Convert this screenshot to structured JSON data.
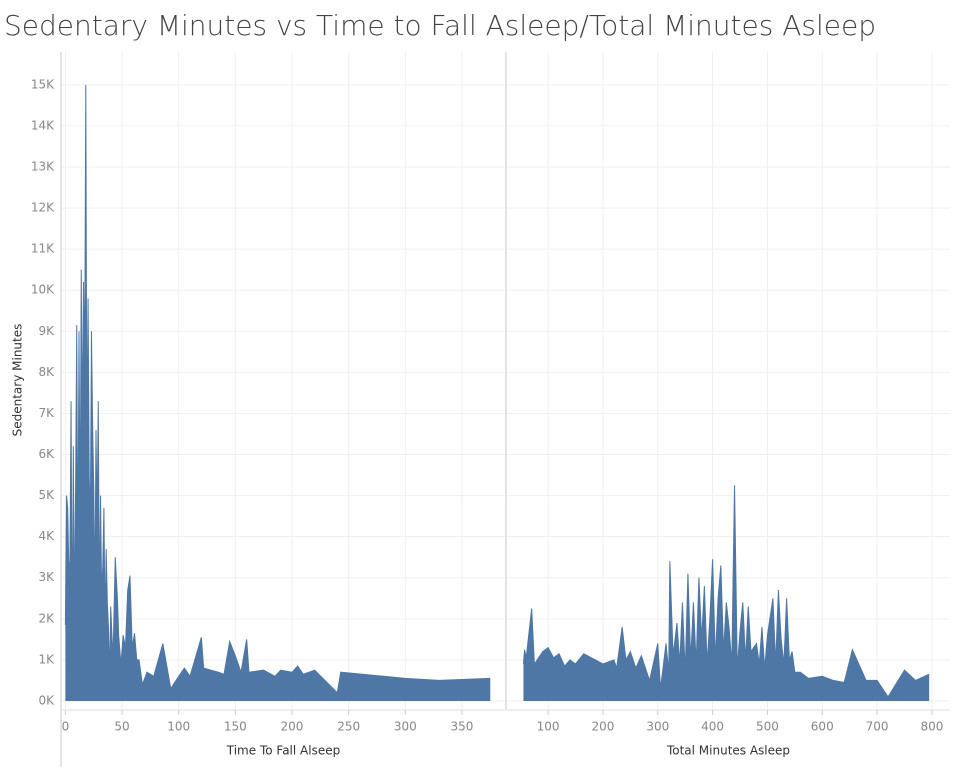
{
  "chart_data": [
    {
      "type": "area",
      "title": "Sedentary Minutes vs Time to Fall Asleep/Total Minutes Asleep",
      "y_label": "Sedentary Minutes",
      "x_label": "Time To Fall Alseep",
      "color": "#4e77a5",
      "grid": true,
      "x": [
        0,
        1,
        2,
        3,
        4,
        5,
        6,
        7,
        8,
        9,
        10,
        11,
        12,
        13,
        14,
        15,
        16,
        17,
        18,
        19,
        20,
        21,
        22,
        23,
        24,
        25,
        26,
        27,
        28,
        29,
        30,
        31,
        32,
        33,
        34,
        35,
        36,
        37,
        38,
        39,
        40,
        42,
        44,
        46,
        47,
        49,
        51,
        53,
        55,
        57,
        59,
        61,
        63,
        65,
        68,
        72,
        78,
        86,
        93,
        100,
        105,
        110,
        120,
        122,
        135,
        140,
        145,
        150,
        155,
        160,
        162,
        175,
        185,
        190,
        200,
        205,
        210,
        220,
        240,
        243,
        300,
        330,
        375
      ],
      "values": [
        1850,
        5000,
        4700,
        3300,
        3400,
        7300,
        1300,
        6200,
        2000,
        5200,
        9150,
        3000,
        9000,
        4200,
        10500,
        6500,
        10200,
        8000,
        15000,
        6000,
        9800,
        5500,
        4300,
        9000,
        6800,
        5200,
        2500,
        6600,
        4300,
        7300,
        2200,
        5000,
        2600,
        3300,
        4700,
        1800,
        3700,
        2400,
        1800,
        600,
        2300,
        1000,
        3500,
        2450,
        1600,
        900,
        1600,
        1300,
        2700,
        3050,
        1300,
        1650,
        1000,
        1000,
        400,
        700,
        600,
        1400,
        300,
        600,
        800,
        600,
        1550,
        800,
        700,
        650,
        1450,
        1100,
        700,
        1500,
        700,
        750,
        600,
        750,
        700,
        850,
        650,
        750,
        200,
        700,
        550,
        500,
        550
      ],
      "xlim": [
        -3,
        388
      ],
      "xticks": [
        0,
        50,
        100,
        150,
        200,
        250,
        300,
        350
      ],
      "ylim": [
        -220,
        15800
      ],
      "yticks": [
        {
          "value": 0,
          "label": "0K"
        },
        {
          "value": 1000,
          "label": "1K"
        },
        {
          "value": 2000,
          "label": "2K"
        },
        {
          "value": 3000,
          "label": "3K"
        },
        {
          "value": 4000,
          "label": "4K"
        },
        {
          "value": 5000,
          "label": "5K"
        },
        {
          "value": 6000,
          "label": "6K"
        },
        {
          "value": 7000,
          "label": "7K"
        },
        {
          "value": 8000,
          "label": "8K"
        },
        {
          "value": 9000,
          "label": "9K"
        },
        {
          "value": 10000,
          "label": "10K"
        },
        {
          "value": 11000,
          "label": "11K"
        },
        {
          "value": 12000,
          "label": "12K"
        },
        {
          "value": 13000,
          "label": "13K"
        },
        {
          "value": 14000,
          "label": "14K"
        },
        {
          "value": 15000,
          "label": "15K"
        }
      ]
    },
    {
      "type": "area",
      "x_label": "Total Minutes Asleep",
      "color": "#4e77a5",
      "grid": true,
      "x": [
        55,
        57,
        60,
        70,
        75,
        90,
        100,
        110,
        120,
        130,
        140,
        150,
        165,
        200,
        220,
        225,
        235,
        242,
        250,
        260,
        270,
        285,
        300,
        305,
        315,
        320,
        322,
        328,
        335,
        340,
        345,
        350,
        355,
        360,
        365,
        370,
        375,
        380,
        385,
        390,
        395,
        400,
        405,
        410,
        415,
        420,
        425,
        430,
        435,
        440,
        445,
        450,
        455,
        460,
        465,
        470,
        480,
        485,
        490,
        495,
        500,
        510,
        515,
        520,
        525,
        530,
        535,
        540,
        545,
        550,
        560,
        575,
        600,
        620,
        640,
        655,
        680,
        700,
        720,
        750,
        770,
        795
      ],
      "values": [
        900,
        1250,
        1050,
        2250,
        900,
        1200,
        1300,
        1050,
        1150,
        850,
        1000,
        900,
        1150,
        900,
        1000,
        800,
        1800,
        1000,
        1200,
        800,
        1100,
        500,
        1400,
        300,
        1400,
        700,
        3400,
        1100,
        1900,
        900,
        2400,
        700,
        3100,
        1000,
        2400,
        900,
        3000,
        1500,
        2800,
        900,
        2000,
        3450,
        1000,
        2500,
        3300,
        1200,
        2400,
        1800,
        900,
        5250,
        800,
        1700,
        2400,
        1000,
        2300,
        1200,
        1400,
        900,
        1800,
        800,
        1600,
        2500,
        900,
        2700,
        1500,
        900,
        2500,
        1000,
        1200,
        700,
        700,
        550,
        600,
        500,
        450,
        1250,
        500,
        500,
        100,
        750,
        500,
        650
      ],
      "xlim": [
        25,
        833
      ],
      "xticks": [
        100,
        200,
        300,
        400,
        500,
        600,
        700,
        800
      ],
      "ylim": [
        -220,
        15800
      ]
    }
  ]
}
